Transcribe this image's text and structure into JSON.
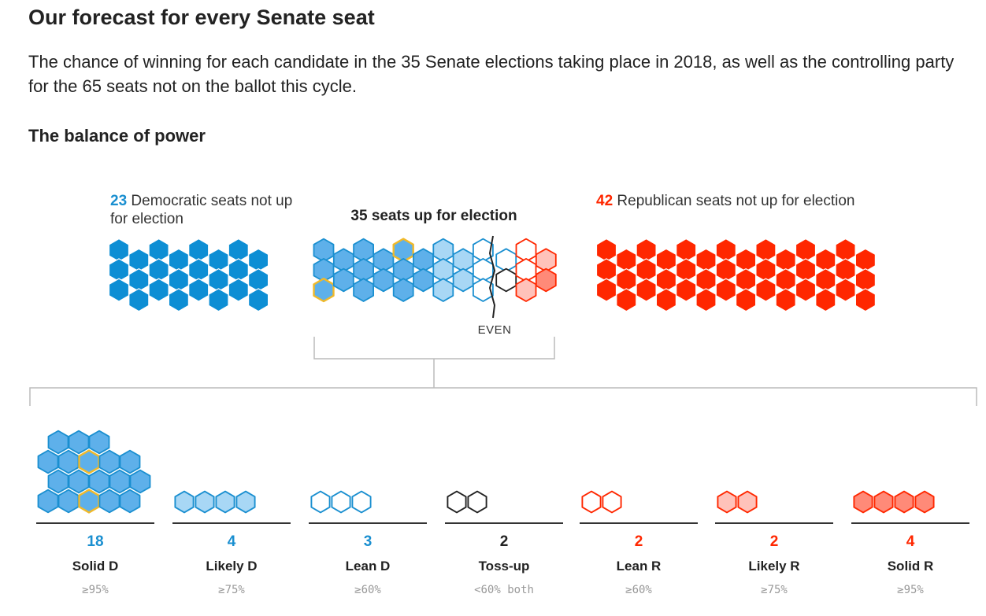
{
  "header": {
    "title": "Our forecast for every Senate seat",
    "subtitle": "The chance of winning for each candidate in the 35 Senate elections taking place in 2018, as well as the controlling party for the 65 seats not on the ballot this cycle.",
    "section": "The balance of power"
  },
  "colors": {
    "solid_d": "#0d8ed4",
    "likely_d_fill": "#a8d7f5",
    "lean_d_fill": "#ffffff",
    "mid_d_fill": "#5eb0ea",
    "dem_stroke": "#1a8fd0",
    "tossup": "#222222",
    "solid_r": "#ff2700",
    "solid_r_light": "#ff8a78",
    "likely_r_fill": "#ffc2ba",
    "lean_r_fill": "#ffffff",
    "highlight": "#f0b92a",
    "bracket": "#bbbbbb"
  },
  "chart_data": {
    "type": "hexagon-seat-chart",
    "dem_not_up": {
      "count": "23",
      "label": "Democratic seats not up for election"
    },
    "rep_not_up": {
      "count": "42",
      "label": "Republican seats not up for election"
    },
    "up_for_election": {
      "label": "35 seats up for election",
      "center_marker": "EVEN"
    },
    "categories": [
      {
        "name": "Solid D",
        "count": "18",
        "threshold": "≥95%",
        "party": "D",
        "highlighted": 2
      },
      {
        "name": "Likely D",
        "count": "4",
        "threshold": "≥75%",
        "party": "D",
        "highlighted": 0
      },
      {
        "name": "Lean D",
        "count": "3",
        "threshold": "≥60%",
        "party": "D",
        "highlighted": 0
      },
      {
        "name": "Toss-up",
        "count": "2",
        "threshold": "<60% both",
        "party": "T",
        "highlighted": 0
      },
      {
        "name": "Lean R",
        "count": "2",
        "threshold": "≥60%",
        "party": "R",
        "highlighted": 0
      },
      {
        "name": "Likely R",
        "count": "2",
        "threshold": "≥75%",
        "party": "R",
        "highlighted": 0
      },
      {
        "name": "Solid R",
        "count": "4",
        "threshold": "≥95%",
        "party": "R",
        "highlighted": 0
      }
    ]
  }
}
